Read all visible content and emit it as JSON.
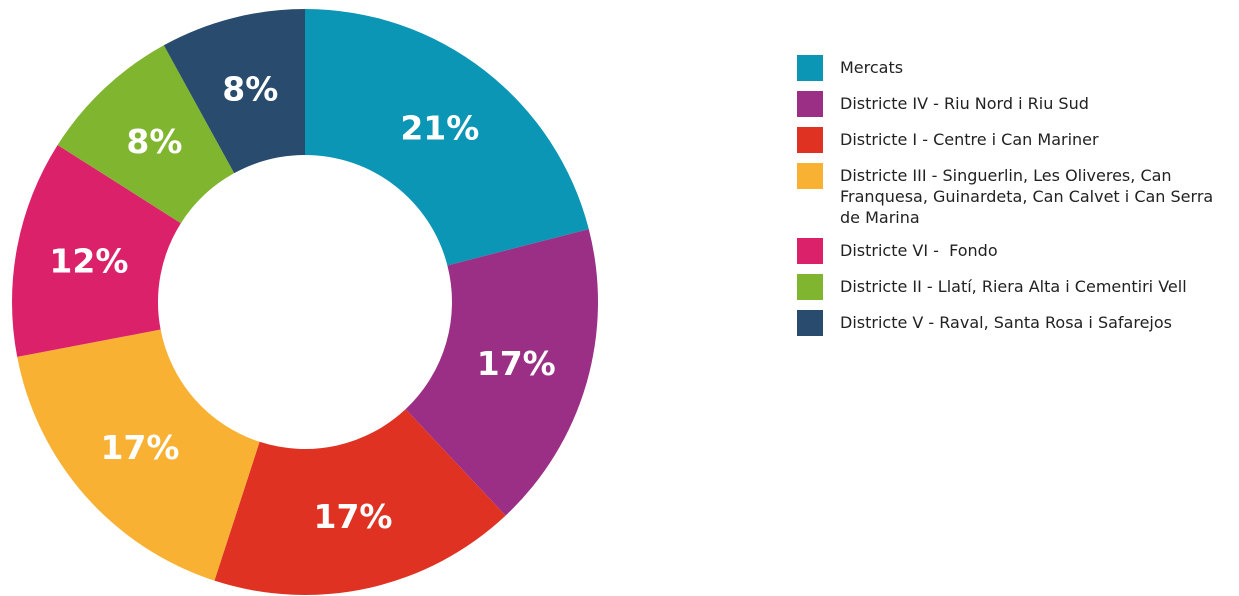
{
  "chart_data": {
    "type": "donut",
    "categories": [
      "Mercats",
      "Districte IV - Riu Nord i Riu Sud",
      "Districte I - Centre i Can Mariner",
      "Districte III - Singuerlin, Les Oliveres, Can Franquesa, Guinardeta, Can Calvet i Can Serra de Marina",
      "Districte VI -  Fondo",
      "Districte II - Llatí, Riera Alta i Cementiri Vell",
      "Districte V - Raval, Santa Rosa i Safarejos"
    ],
    "values": [
      21,
      17,
      17,
      17,
      12,
      8,
      8
    ],
    "value_labels": [
      "21%",
      "17%",
      "17%",
      "17%",
      "12%",
      "8%",
      "8%"
    ],
    "colors": [
      "#0a96b4",
      "#9b2f85",
      "#e03222",
      "#f8b133",
      "#dc216b",
      "#80b52f",
      "#284b6e"
    ]
  }
}
